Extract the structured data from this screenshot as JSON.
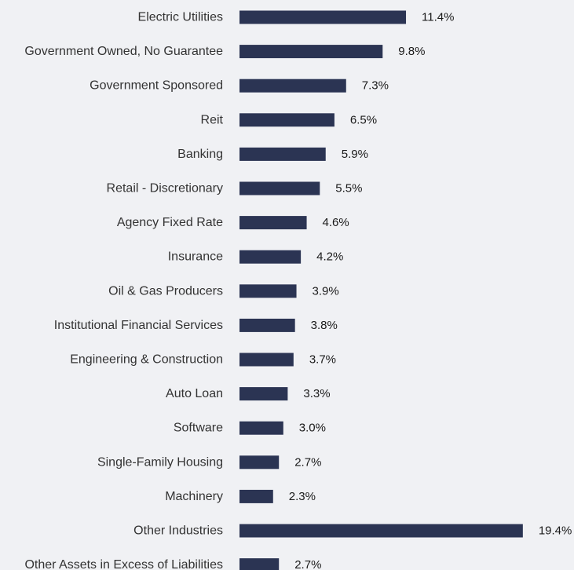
{
  "colors": {
    "background": "#f0f1f4",
    "bar": "#2b3453",
    "category_text": "#333333",
    "value_text": "#1a1a1a"
  },
  "chart_data": {
    "type": "bar",
    "orientation": "horizontal",
    "title": "",
    "xlabel": "",
    "ylabel": "",
    "grid": false,
    "legend": "none",
    "value_suffix": "%",
    "xlim": [
      0,
      20
    ],
    "categories": [
      "Electric Utilities",
      "Government Owned, No Guarantee",
      "Government Sponsored",
      "Reit",
      "Banking",
      "Retail - Discretionary",
      "Agency Fixed Rate",
      "Insurance",
      "Oil & Gas Producers",
      "Institutional Financial Services",
      "Engineering & Construction",
      "Auto Loan",
      "Software",
      "Single-Family Housing",
      "Machinery",
      "Other Industries",
      "Other Assets in Excess of Liabilities"
    ],
    "values": [
      11.4,
      9.8,
      7.3,
      6.5,
      5.9,
      5.5,
      4.6,
      4.2,
      3.9,
      3.8,
      3.7,
      3.3,
      3.0,
      2.7,
      2.3,
      19.4,
      2.7
    ],
    "value_labels": [
      "11.4%",
      "9.8%",
      "7.3%",
      "6.5%",
      "5.9%",
      "5.5%",
      "4.6%",
      "4.2%",
      "3.9%",
      "3.8%",
      "3.7%",
      "3.3%",
      "3.0%",
      "2.7%",
      "2.3%",
      "19.4%",
      "2.7%"
    ]
  }
}
